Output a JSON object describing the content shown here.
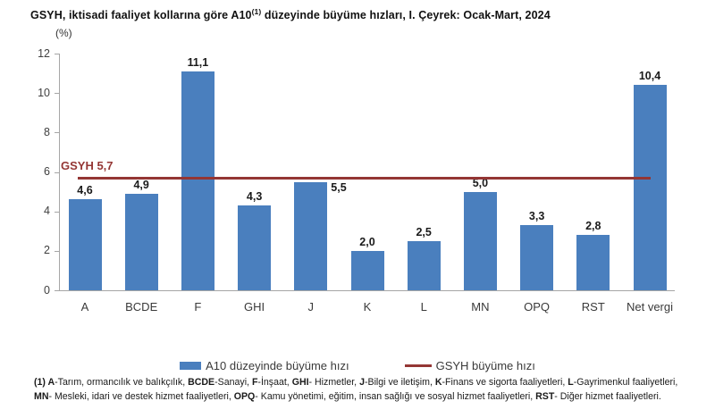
{
  "title": {
    "before_sup": "GSYH, iktisadi faaliyet kollarına göre A10",
    "sup": "(1)",
    "after_sup": " düzeyinde büyüme hızları, I. Çeyrek: Ocak-Mart, 2024"
  },
  "chart_data": {
    "type": "bar",
    "unit_label": "(%)",
    "categories": [
      "A",
      "BCDE",
      "F",
      "GHI",
      "J",
      "K",
      "L",
      "MN",
      "OPQ",
      "RST",
      "Net vergi"
    ],
    "values": [
      4.6,
      4.9,
      11.1,
      4.3,
      5.5,
      2.0,
      2.5,
      5.0,
      3.3,
      2.8,
      10.4
    ],
    "value_labels": [
      "4,6",
      "4,9",
      "11,1",
      "4,3",
      "5,5",
      "2,0",
      "2,5",
      "5,0",
      "3,3",
      "2,8",
      "10,4"
    ],
    "label_placement": [
      "above",
      "above",
      "above",
      "above",
      "right",
      "above",
      "above",
      "above",
      "above",
      "above",
      "above"
    ],
    "bar_color": "#4a7fbe",
    "ylim": [
      0,
      12
    ],
    "yticks": [
      0,
      2,
      4,
      6,
      8,
      10,
      12
    ],
    "grid": false,
    "reference_line": {
      "value": 5.7,
      "label": "GSYH 5,7",
      "color": "#943634"
    },
    "legend": [
      {
        "label": "A10 düzeyinde büyüme hızı",
        "swatch": "bar",
        "color": "#4a7fbe"
      },
      {
        "label": "GSYH büyüme hızı",
        "swatch": "line",
        "color": "#943634"
      }
    ],
    "legend_position": "bottom-center"
  },
  "footnote": {
    "lines": [
      [
        {
          "t": "(1) A",
          "b": true
        },
        {
          "t": "-Tarım, ormancılık ve balıkçılık, ",
          "b": false
        },
        {
          "t": "BCDE",
          "b": true
        },
        {
          "t": "-Sanayi, ",
          "b": false
        },
        {
          "t": "F",
          "b": true
        },
        {
          "t": "-İnşaat, ",
          "b": false
        },
        {
          "t": "GHI",
          "b": true
        },
        {
          "t": "- Hizmetler, ",
          "b": false
        },
        {
          "t": "J",
          "b": true
        },
        {
          "t": "-Bilgi ve iletişim, ",
          "b": false
        },
        {
          "t": "K",
          "b": true
        },
        {
          "t": "-Finans ve sigorta faaliyetleri, ",
          "b": false
        },
        {
          "t": "L",
          "b": true
        },
        {
          "t": "-Gayrimenkul faaliyetleri,",
          "b": false
        }
      ],
      [
        {
          "t": "MN",
          "b": true
        },
        {
          "t": "- Mesleki, idari ve destek hizmet faaliyetleri, ",
          "b": false
        },
        {
          "t": "OPQ",
          "b": true
        },
        {
          "t": "- Kamu yönetimi, eğitim, insan sağlığı ve sosyal hizmet faaliyetleri, ",
          "b": false
        },
        {
          "t": "RST",
          "b": true
        },
        {
          "t": "- Diğer hizmet faaliyetleri.",
          "b": false
        }
      ]
    ]
  }
}
